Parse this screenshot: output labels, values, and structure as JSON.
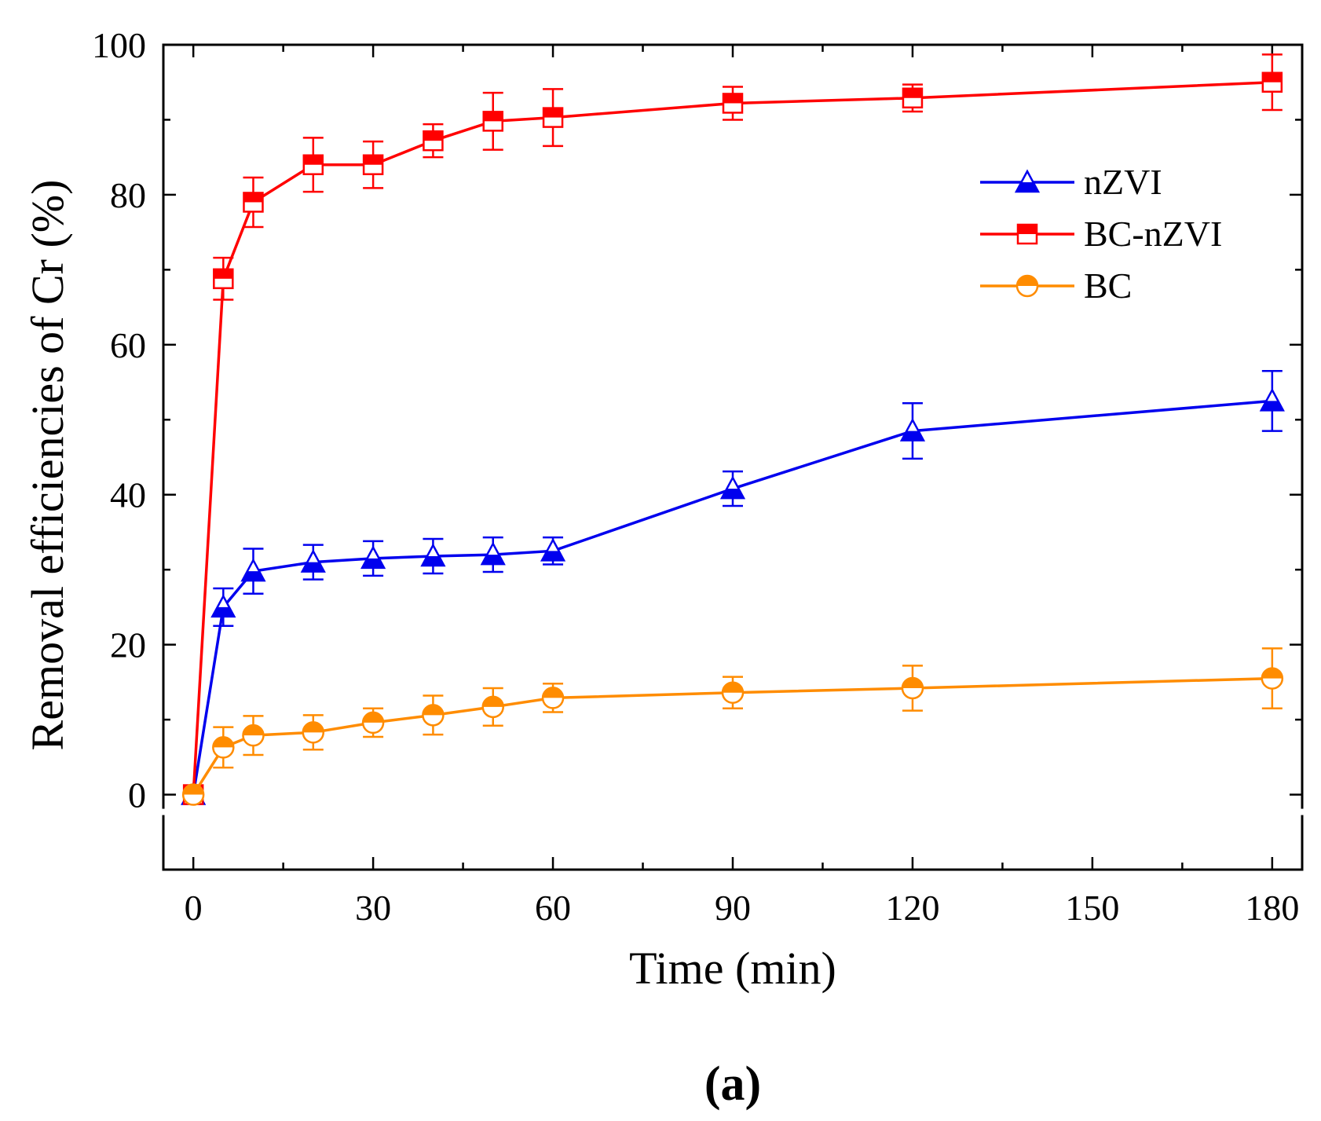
{
  "panel_label": "(a)",
  "chart_data": {
    "type": "line",
    "title": "",
    "xlabel": "Time (min)",
    "ylabel": "Removal efficiencies of  Cr (%)",
    "xlim": [
      -5,
      185
    ],
    "ylim": [
      -10,
      100
    ],
    "xticks": [
      0,
      30,
      60,
      90,
      120,
      150,
      180
    ],
    "yticks": [
      0,
      20,
      40,
      60,
      80,
      100
    ],
    "xtick_labels": [
      "0",
      "30",
      "60",
      "90",
      "120",
      "150",
      "180"
    ],
    "ytick_labels": [
      "0",
      "20",
      "40",
      "60",
      "80",
      "100"
    ],
    "legend_position": "top-right",
    "x": [
      0,
      5,
      10,
      20,
      30,
      40,
      50,
      60,
      90,
      120,
      180
    ],
    "series": [
      {
        "name": "nZVI",
        "color": "#0000ee",
        "marker": "triangle",
        "values": [
          0,
          25.0,
          29.8,
          31.0,
          31.5,
          31.8,
          32.0,
          32.5,
          40.8,
          48.5,
          52.5
        ],
        "errors": [
          0.5,
          2.5,
          3.0,
          2.3,
          2.3,
          2.3,
          2.3,
          1.8,
          2.3,
          3.7,
          4.0
        ]
      },
      {
        "name": "BC-nZVI",
        "color": "#ff0000",
        "marker": "square",
        "values": [
          0,
          68.8,
          79.0,
          84.0,
          84.0,
          87.2,
          89.8,
          90.3,
          92.2,
          92.9,
          95.0
        ],
        "errors": [
          0.5,
          2.8,
          3.3,
          3.6,
          3.1,
          2.2,
          3.8,
          3.8,
          2.2,
          1.8,
          3.7
        ]
      },
      {
        "name": "BC",
        "color": "#ff8c00",
        "marker": "circle",
        "values": [
          0,
          6.3,
          7.9,
          8.3,
          9.6,
          10.6,
          11.7,
          12.9,
          13.6,
          14.2,
          15.5
        ],
        "errors": [
          0.5,
          2.7,
          2.6,
          2.3,
          1.9,
          2.6,
          2.5,
          1.9,
          2.1,
          3.0,
          4.0
        ]
      }
    ]
  }
}
